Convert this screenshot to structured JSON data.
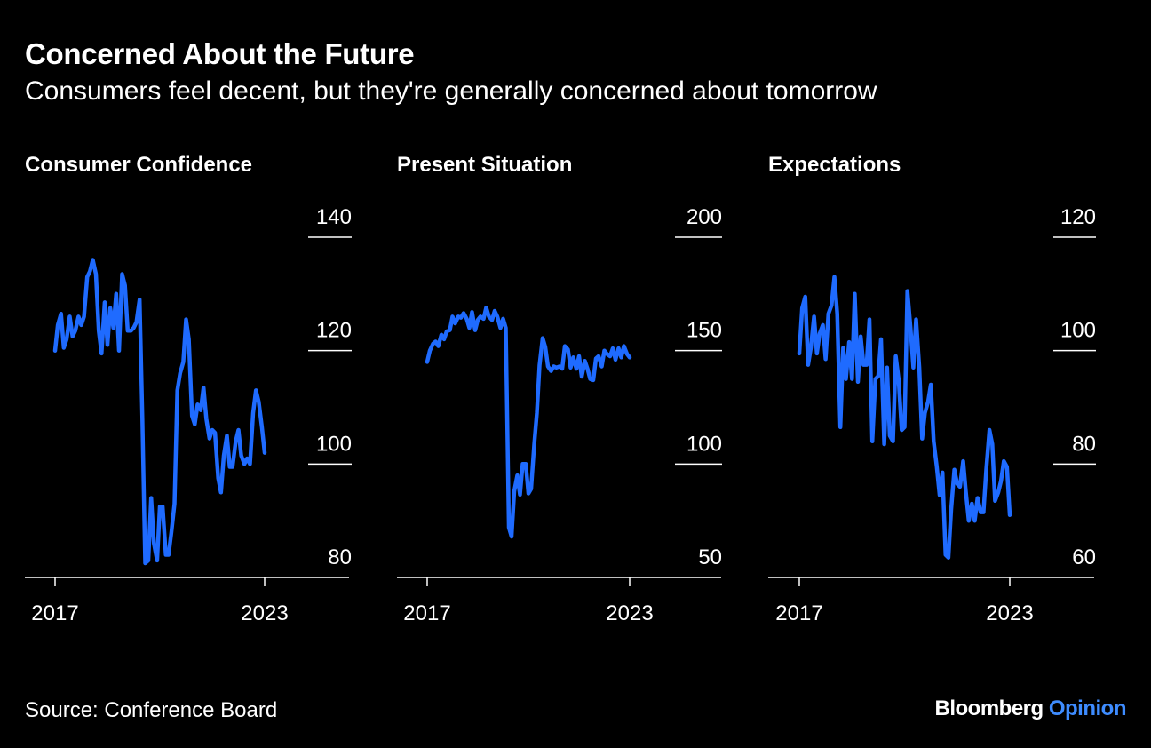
{
  "header": {
    "title": "Concerned About the Future",
    "subtitle": "Consumers feel decent, but they're generally concerned about tomorrow"
  },
  "footer": {
    "source": "Source: Conference Board",
    "brand_main": "Bloomberg",
    "brand_accent": "Opinion"
  },
  "colors": {
    "background": "#000000",
    "line": "#1f6bff",
    "text": "#ffffff",
    "brand_accent": "#3e8cff"
  },
  "chart_data": [
    {
      "type": "line",
      "title": "Consumer Confidence",
      "x_ticks": [
        "2017",
        "2023"
      ],
      "x_range": [
        2017,
        2023
      ],
      "y_ticks": [
        80,
        100,
        120,
        140
      ],
      "ylim": [
        80,
        140
      ],
      "grid": "horizontal",
      "y_axis_side": "right",
      "series": [
        {
          "x": [
            2017.0,
            2017.08,
            2017.17,
            2017.25,
            2017.33,
            2017.42,
            2017.5,
            2017.58,
            2017.67,
            2017.75,
            2017.83,
            2017.92,
            2018.0,
            2018.08,
            2018.17,
            2018.25,
            2018.33,
            2018.42,
            2018.5,
            2018.58,
            2018.67,
            2018.75,
            2018.83,
            2018.92,
            2019.0,
            2019.08,
            2019.17,
            2019.25,
            2019.33,
            2019.42,
            2019.5,
            2019.58,
            2019.67,
            2019.75,
            2019.83,
            2019.92,
            2020.0,
            2020.08,
            2020.17,
            2020.25,
            2020.33,
            2020.42,
            2020.5,
            2020.58,
            2020.67,
            2020.75,
            2020.83,
            2020.92,
            2021.0,
            2021.08,
            2021.17,
            2021.25,
            2021.33,
            2021.42,
            2021.5,
            2021.58,
            2021.67,
            2021.75,
            2021.83,
            2021.92,
            2022.0,
            2022.08,
            2022.17,
            2022.25,
            2022.33,
            2022.42,
            2022.5,
            2022.58,
            2022.67,
            2022.75,
            2022.83,
            2022.92,
            2023.0
          ],
          "values": [
            120.0,
            124.5,
            126.5,
            120.5,
            122.0,
            126.0,
            122.5,
            123.5,
            126.0,
            124.5,
            126.0,
            133.0,
            134.0,
            136.0,
            133.5,
            123.5,
            119.5,
            128.5,
            121.0,
            127.5,
            124.0,
            130.0,
            120.0,
            133.5,
            131.5,
            123.5,
            123.5,
            124.0,
            125.0,
            129.0,
            108.0,
            82.5,
            83.0,
            94.0,
            86.0,
            83.0,
            92.5,
            92.5,
            84.0,
            84.0,
            88.0,
            93.0,
            113.0,
            116.0,
            118.0,
            125.5,
            122.0,
            108.5,
            107.0,
            110.5,
            109.5,
            113.5,
            108.0,
            104.5,
            106.0,
            105.5,
            97.5,
            95.0,
            101.5,
            105.0,
            99.5,
            99.5,
            104.0,
            106.0,
            101.5,
            100.0,
            101.0,
            100.0,
            109.0,
            113.0,
            111.0,
            106.5,
            102.0
          ]
        }
      ]
    },
    {
      "type": "line",
      "title": "Present Situation",
      "x_ticks": [
        "2017",
        "2023"
      ],
      "x_range": [
        2017,
        2023
      ],
      "y_ticks": [
        50,
        100,
        150,
        200
      ],
      "ylim": [
        50,
        200
      ],
      "grid": "horizontal",
      "y_axis_side": "right",
      "series": [
        {
          "x": [
            2017.0,
            2017.08,
            2017.17,
            2017.25,
            2017.33,
            2017.42,
            2017.5,
            2017.58,
            2017.67,
            2017.75,
            2017.83,
            2017.92,
            2018.0,
            2018.08,
            2018.17,
            2018.25,
            2018.33,
            2018.42,
            2018.5,
            2018.58,
            2018.67,
            2018.75,
            2018.83,
            2018.92,
            2019.0,
            2019.08,
            2019.17,
            2019.25,
            2019.33,
            2019.42,
            2019.5,
            2019.58,
            2019.67,
            2019.75,
            2019.83,
            2019.92,
            2020.0,
            2020.08,
            2020.17,
            2020.25,
            2020.33,
            2020.42,
            2020.5,
            2020.58,
            2020.67,
            2020.75,
            2020.83,
            2020.92,
            2021.0,
            2021.08,
            2021.17,
            2021.25,
            2021.33,
            2021.42,
            2021.5,
            2021.58,
            2021.67,
            2021.75,
            2021.83,
            2021.92,
            2022.0,
            2022.08,
            2022.17,
            2022.25,
            2022.33,
            2022.42,
            2022.5,
            2022.58,
            2022.67,
            2022.75,
            2022.83,
            2022.92,
            2023.0
          ],
          "values": [
            145.0,
            150.0,
            153.0,
            154.0,
            152.0,
            157.0,
            155.0,
            158.5,
            159.0,
            165.0,
            162.0,
            165.0,
            164.5,
            166.5,
            164.0,
            160.0,
            167.0,
            159.0,
            163.5,
            165.0,
            164.0,
            169.0,
            165.0,
            163.5,
            167.5,
            165.0,
            160.0,
            164.0,
            160.0,
            72.0,
            68.0,
            88.0,
            95.0,
            86.5,
            100.0,
            100.0,
            87.0,
            89.0,
            108.5,
            122.5,
            143.5,
            155.5,
            151.5,
            143.0,
            141.0,
            143.0,
            142.5,
            143.0,
            142.0,
            152.0,
            150.5,
            142.5,
            147.0,
            142.0,
            147.5,
            138.5,
            145.5,
            142.0,
            137.5,
            137.0,
            146.5,
            147.5,
            143.0,
            150.0,
            148.5,
            147.5,
            151.0,
            146.0,
            151.0,
            147.0,
            152.0,
            148.5,
            147.0
          ]
        }
      ]
    },
    {
      "type": "line",
      "title": "Expectations",
      "x_ticks": [
        "2017",
        "2023"
      ],
      "x_range": [
        2017,
        2023
      ],
      "y_ticks": [
        60,
        80,
        100,
        120
      ],
      "ylim": [
        60,
        120
      ],
      "grid": "horizontal",
      "y_axis_side": "right",
      "series": [
        {
          "x": [
            2017.0,
            2017.08,
            2017.17,
            2017.25,
            2017.33,
            2017.42,
            2017.5,
            2017.58,
            2017.67,
            2017.75,
            2017.83,
            2017.92,
            2018.0,
            2018.08,
            2018.17,
            2018.25,
            2018.33,
            2018.42,
            2018.5,
            2018.58,
            2018.67,
            2018.75,
            2018.83,
            2018.92,
            2019.0,
            2019.08,
            2019.17,
            2019.25,
            2019.33,
            2019.42,
            2019.5,
            2019.58,
            2019.67,
            2019.75,
            2019.83,
            2019.92,
            2020.0,
            2020.08,
            2020.17,
            2020.25,
            2020.33,
            2020.42,
            2020.5,
            2020.58,
            2020.67,
            2020.75,
            2020.83,
            2020.92,
            2021.0,
            2021.08,
            2021.17,
            2021.25,
            2021.33,
            2021.42,
            2021.5,
            2021.58,
            2021.67,
            2021.75,
            2021.83,
            2021.92,
            2022.0,
            2022.08,
            2022.17,
            2022.25,
            2022.33,
            2022.42,
            2022.5,
            2022.58,
            2022.67,
            2022.75,
            2022.83,
            2022.92,
            2023.0
          ],
          "values": [
            99.5,
            107.5,
            109.5,
            97.5,
            100.5,
            106.0,
            99.5,
            103.0,
            104.5,
            98.5,
            106.5,
            108.0,
            113.0,
            106.5,
            86.5,
            100.5,
            95.0,
            101.5,
            95.0,
            110.0,
            94.5,
            102.5,
            97.5,
            97.5,
            105.5,
            84.0,
            95.0,
            95.5,
            102.0,
            83.5,
            97.0,
            85.0,
            84.0,
            99.0,
            95.0,
            86.0,
            86.5,
            110.5,
            104.0,
            97.0,
            105.5,
            97.0,
            84.5,
            89.0,
            91.0,
            94.0,
            84.0,
            79.5,
            74.5,
            78.5,
            64.0,
            63.5,
            72.0,
            79.0,
            76.5,
            76.0,
            80.5,
            75.0,
            70.0,
            73.0,
            70.0,
            74.0,
            71.5,
            71.5,
            79.0,
            86.0,
            83.5,
            73.5,
            75.0,
            77.0,
            80.5,
            79.5,
            71.0
          ]
        }
      ]
    }
  ]
}
